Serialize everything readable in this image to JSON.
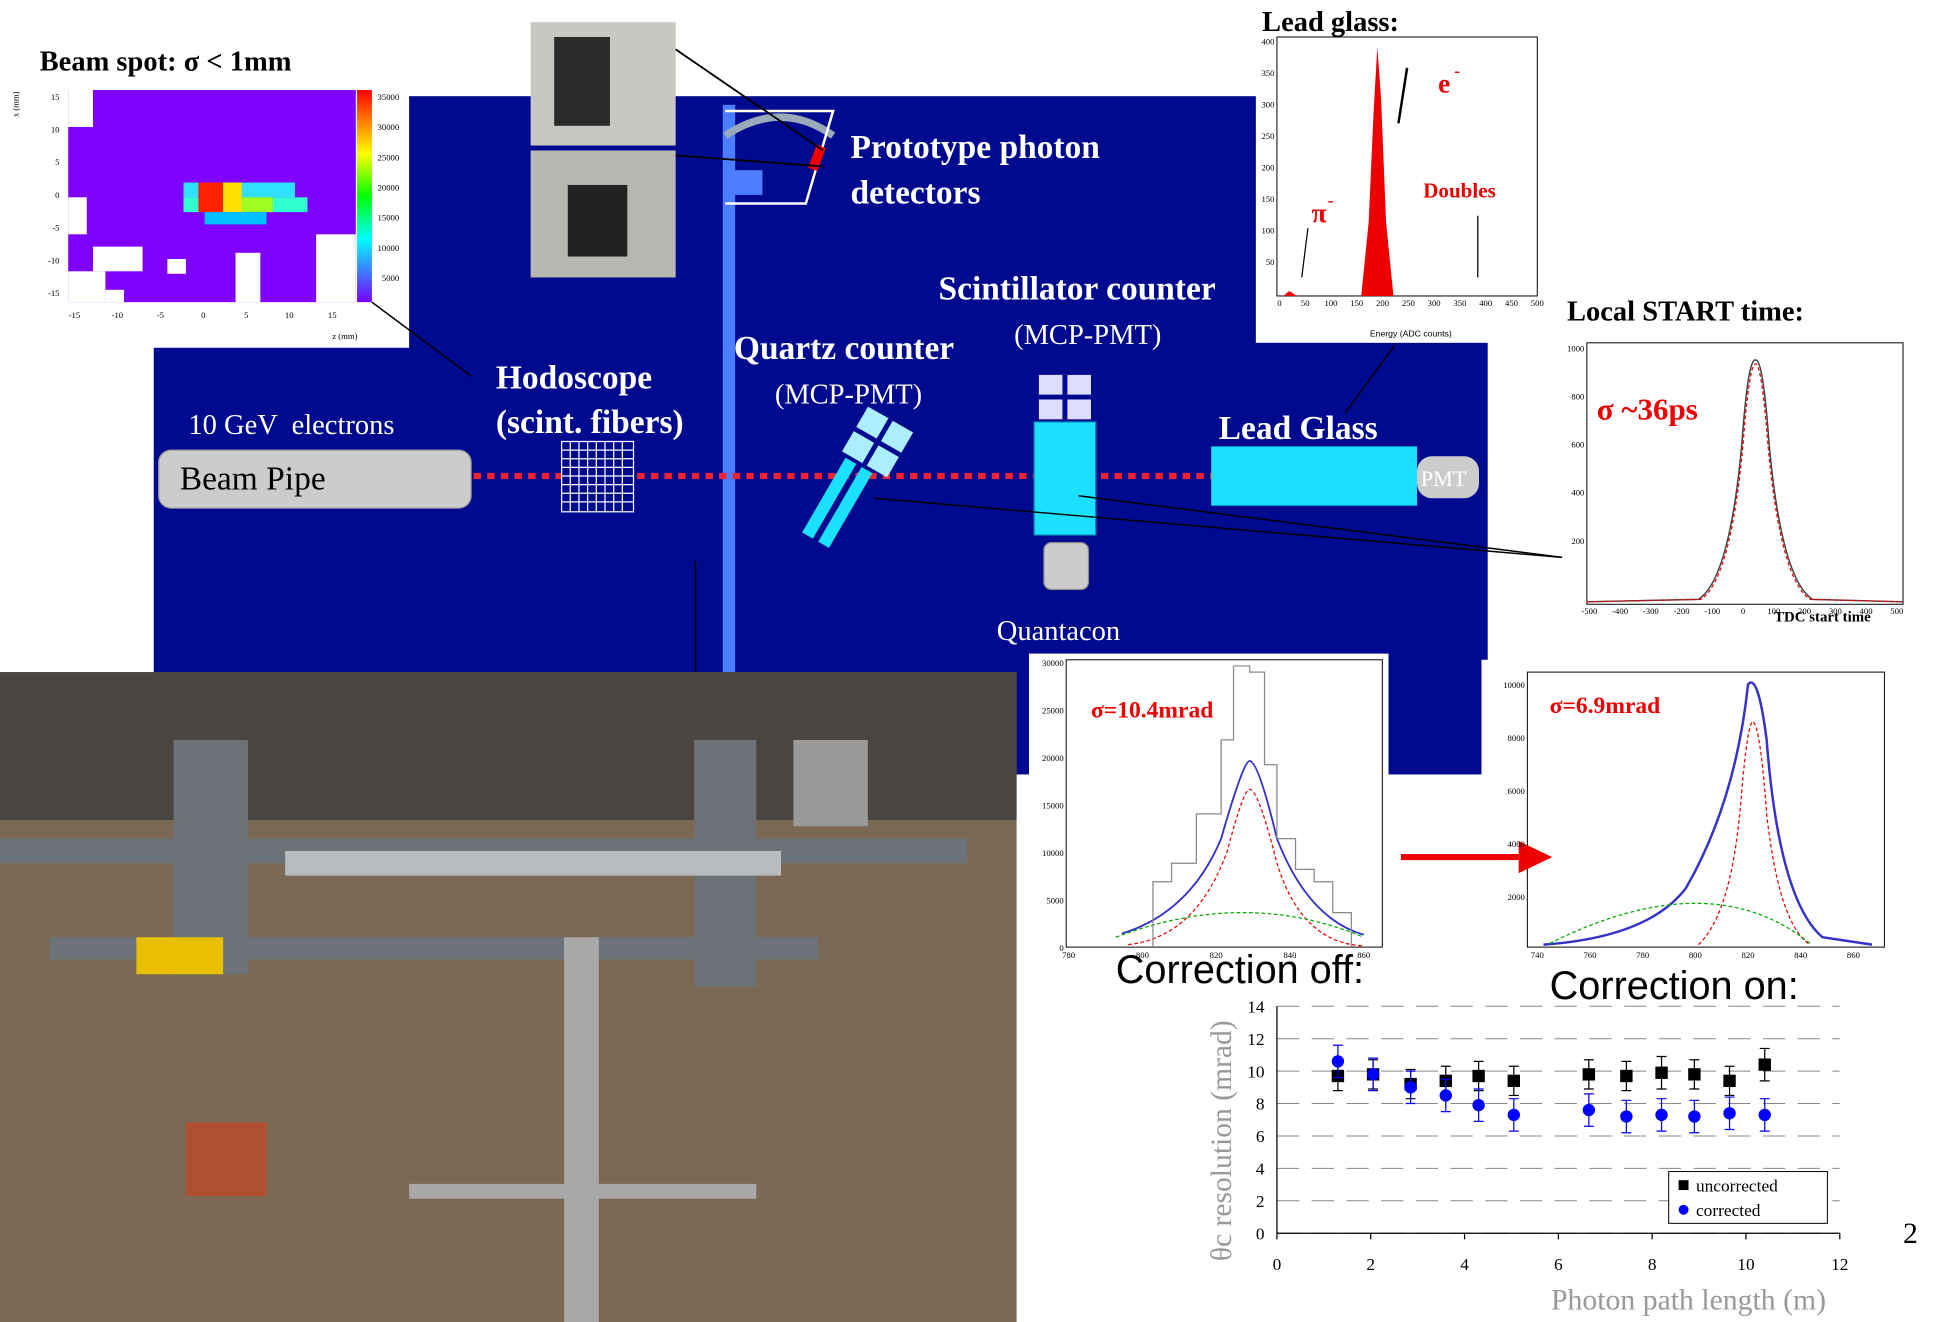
{
  "chart_data": {
    "type": "scatter",
    "xlabel": "Photon path length (m)",
    "ylabel": "θc resolution (mrad)",
    "xlim": [
      0,
      12
    ],
    "xticks": [
      0,
      2,
      4,
      6,
      8,
      10,
      12
    ],
    "ylim": [
      0,
      14
    ],
    "yticks": [
      0,
      2,
      4,
      6,
      8,
      10,
      12,
      14
    ],
    "grid": true,
    "legend": "lower right",
    "series": [
      {
        "name": "uncorrected",
        "color": "#000000",
        "marker": "square",
        "x": [
          1.3,
          2.05,
          2.85,
          3.6,
          4.3,
          5.05,
          6.65,
          7.45,
          8.2,
          8.9,
          9.65,
          10.4
        ],
        "values": [
          9.7,
          9.8,
          9.2,
          9.4,
          9.7,
          9.4,
          9.8,
          9.7,
          9.9,
          9.8,
          9.4,
          10.4
        ],
        "errors": [
          0.9,
          0.9,
          0.9,
          0.9,
          0.9,
          0.9,
          0.9,
          0.9,
          1.0,
          0.9,
          0.9,
          1.0
        ]
      },
      {
        "name": "corrected",
        "color": "#0000ff",
        "marker": "circle",
        "x": [
          1.3,
          2.05,
          2.85,
          3.6,
          4.3,
          5.05,
          6.65,
          7.45,
          8.2,
          8.9,
          9.65,
          10.4
        ],
        "values": [
          10.6,
          9.8,
          9.0,
          8.5,
          7.9,
          7.3,
          7.6,
          7.2,
          7.3,
          7.2,
          7.4,
          7.3
        ],
        "errors": [
          1.0,
          1.0,
          1.0,
          1.0,
          1.0,
          1.0,
          1.0,
          1.0,
          1.0,
          1.0,
          1.0,
          1.0
        ]
      }
    ]
  },
  "slide": {
    "beam_spot": {
      "title": "Beam spot: σ < 1mm",
      "xticks": [
        -15,
        -10,
        -5,
        0,
        5,
        10,
        15
      ],
      "xlabel": "z (mm)",
      "yticks": [
        15,
        10,
        5,
        0,
        -5,
        -10,
        -15
      ],
      "ylabel": "x (mm)",
      "colorbar": [
        35000,
        30000,
        25000,
        20000,
        15000,
        10000,
        5000
      ]
    },
    "lead_glass": {
      "title": "Lead glass:",
      "xticks": [
        0,
        50,
        100,
        150,
        200,
        250,
        300,
        350,
        400,
        450,
        500
      ],
      "yticks": [
        400,
        350,
        300,
        250,
        200,
        150,
        100,
        50
      ],
      "xlabel": "Energy (ADC counts)",
      "electron": "e",
      "pion": "π",
      "charge": "-",
      "doubles": "Doubles"
    },
    "start_time": {
      "title": "Local START time:",
      "sigma": "σ ~36ps",
      "xticks": [
        -500,
        -400,
        -300,
        -200,
        -100,
        0,
        100,
        200,
        300,
        400,
        500
      ],
      "yticks": [
        1000,
        800,
        600,
        400,
        200
      ],
      "xlabel": "TDC start time"
    },
    "theta_off": {
      "sigma": "σ=10.4mrad",
      "xticks": [
        780,
        800,
        820,
        840,
        860
      ],
      "yticks": [
        30000,
        25000,
        20000,
        15000,
        10000,
        5000,
        0
      ],
      "caption": "Correction off:"
    },
    "theta_on": {
      "sigma": "σ=6.9mrad",
      "xticks": [
        740,
        760,
        780,
        800,
        820,
        840,
        860
      ],
      "yticks": [
        10000,
        8000,
        6000,
        4000,
        2000
      ],
      "caption": "Correction on:"
    },
    "diagram": {
      "photon_detectors": [
        "Prototype photon",
        "detectors"
      ],
      "scintillator": "Scintillator counter",
      "scint_pmt": "(MCP-PMT)",
      "quartz": "Quartz counter",
      "quartz_pmt": "(MCP-PMT)",
      "hodoscope": "Hodoscope",
      "hodoscope_sub": "(scint. fibers)",
      "beam": "10 GeV  electrons",
      "beam_pipe": "Beam Pipe",
      "lead_glass": "Lead Glass",
      "pmt": "PMT",
      "quantacon": "Quantacon"
    },
    "page_number": "2"
  }
}
